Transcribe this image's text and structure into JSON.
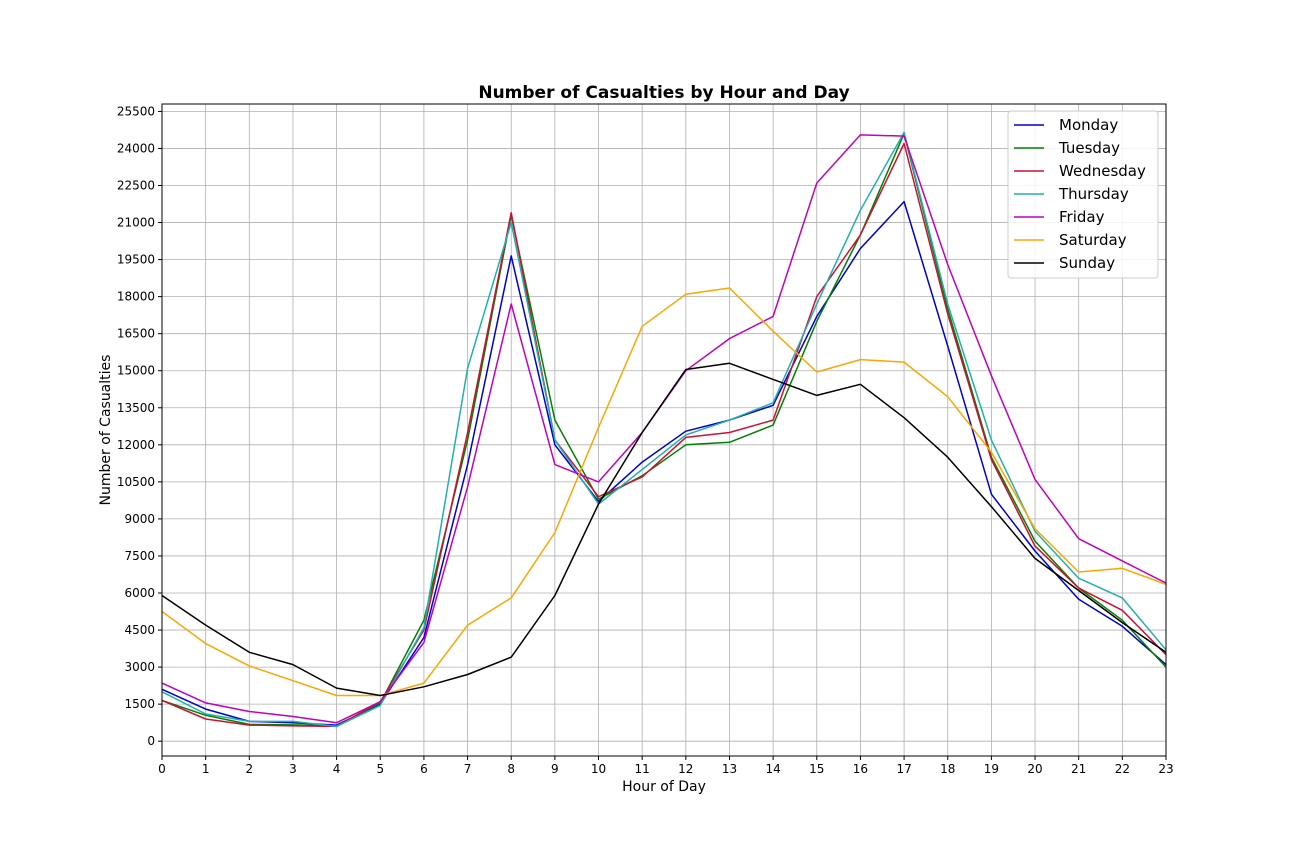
{
  "chart_data": {
    "type": "line",
    "title": "Number of Casualties by Hour and Day",
    "xlabel": "Hour of Day",
    "ylabel": "Number of Casualties",
    "x": [
      0,
      1,
      2,
      3,
      4,
      5,
      6,
      7,
      8,
      9,
      10,
      11,
      12,
      13,
      14,
      15,
      16,
      17,
      18,
      19,
      20,
      21,
      22,
      23
    ],
    "xlim": [
      0,
      23
    ],
    "ylim": [
      -600,
      25800
    ],
    "yticks": [
      0,
      1500,
      3000,
      4500,
      6000,
      7500,
      9000,
      10500,
      12000,
      13500,
      15000,
      16500,
      18000,
      19500,
      21000,
      22500,
      24000,
      25500
    ],
    "grid": true,
    "legend_position": "top-right",
    "series": [
      {
        "name": "Monday",
        "color": "#0000cc",
        "values": [
          2100,
          1300,
          800,
          750,
          650,
          1500,
          4200,
          11200,
          19650,
          12000,
          9700,
          11300,
          12550,
          13000,
          13600,
          17200,
          19950,
          21850,
          16000,
          10000,
          7700,
          5750,
          4650,
          3100
        ]
      },
      {
        "name": "Tuesday",
        "color": "#008000",
        "values": [
          1650,
          1050,
          680,
          660,
          620,
          1550,
          4900,
          12200,
          21300,
          13000,
          9800,
          10750,
          12000,
          12100,
          12800,
          17000,
          20500,
          24600,
          17500,
          11500,
          8100,
          6200,
          4900,
          3000
        ]
      },
      {
        "name": "Wednesday",
        "color": "#cc1133",
        "values": [
          1650,
          900,
          650,
          620,
          600,
          1600,
          4500,
          12500,
          21400,
          12200,
          9900,
          10700,
          12300,
          12500,
          13000,
          18000,
          20500,
          24200,
          17300,
          11400,
          7900,
          6200,
          5300,
          3500
        ]
      },
      {
        "name": "Thursday",
        "color": "#20b0b0",
        "values": [
          2000,
          1100,
          800,
          800,
          600,
          1450,
          4600,
          15100,
          21000,
          12200,
          9600,
          11000,
          12400,
          13000,
          13700,
          17700,
          21500,
          24650,
          17700,
          12200,
          8500,
          6600,
          5800,
          3700
        ]
      },
      {
        "name": "Friday",
        "color": "#c000c0",
        "values": [
          2350,
          1550,
          1200,
          1000,
          750,
          1600,
          4000,
          10300,
          17700,
          11200,
          10500,
          12500,
          15000,
          16300,
          17200,
          22600,
          24550,
          24500,
          19300,
          14800,
          10600,
          8200,
          7300,
          6400
        ]
      },
      {
        "name": "Saturday",
        "color": "#ffa500",
        "values": [
          5250,
          3950,
          3050,
          2450,
          1850,
          1850,
          2350,
          4700,
          5800,
          8450,
          12700,
          16800,
          18100,
          18350,
          16600,
          14950,
          15450,
          15350,
          13950,
          11700,
          8600,
          6850,
          7000,
          6350
        ]
      },
      {
        "name": "Sunday",
        "color": "#000000",
        "values": [
          5900,
          4700,
          3600,
          3100,
          2150,
          1850,
          2200,
          2700,
          3400,
          5900,
          9600,
          12500,
          15050,
          15300,
          14650,
          14000,
          14450,
          13100,
          11500,
          9500,
          7400,
          6100,
          4800,
          3600
        ]
      }
    ]
  }
}
